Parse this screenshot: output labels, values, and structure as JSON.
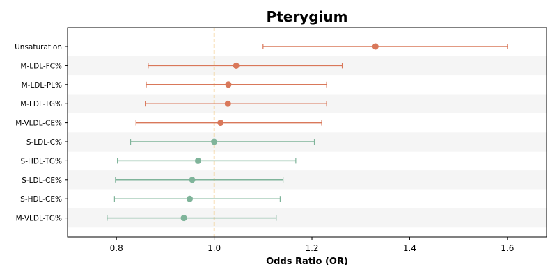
{
  "chart_data": {
    "type": "forest",
    "title": "Pterygium",
    "xlabel": "Odds Ratio (OR)",
    "ylabel": "",
    "xlim": [
      0.7,
      1.68
    ],
    "xticks": [
      0.8,
      1.0,
      1.2,
      1.4,
      1.6
    ],
    "xtick_labels": [
      "0.8",
      "1.0",
      "1.2",
      "1.4",
      "1.6"
    ],
    "reference_line": 1.0,
    "colors": {
      "positive": "#d9785a",
      "negative": "#7fb49a",
      "reference": "#f0c070",
      "band": "#f5f5f5"
    },
    "rows": [
      {
        "label": "Unsaturation",
        "or": 1.33,
        "lower": 1.1,
        "upper": 1.6,
        "group": "positive"
      },
      {
        "label": "M-LDL-FC%",
        "or": 1.045,
        "lower": 0.865,
        "upper": 1.262,
        "group": "positive"
      },
      {
        "label": "M-LDL-PL%",
        "or": 1.029,
        "lower": 0.861,
        "upper": 1.23,
        "group": "positive"
      },
      {
        "label": "M-LDL-TG%",
        "or": 1.028,
        "lower": 0.859,
        "upper": 1.23,
        "group": "positive"
      },
      {
        "label": "M-VLDL-CE%",
        "or": 1.013,
        "lower": 0.84,
        "upper": 1.22,
        "group": "positive"
      },
      {
        "label": "S-LDL-C%",
        "or": 1.0,
        "lower": 0.829,
        "upper": 1.205,
        "group": "negative"
      },
      {
        "label": "S-HDL-TG%",
        "or": 0.967,
        "lower": 0.802,
        "upper": 1.167,
        "group": "negative"
      },
      {
        "label": "S-LDL-CE%",
        "or": 0.955,
        "lower": 0.798,
        "upper": 1.141,
        "group": "negative"
      },
      {
        "label": "S-HDL-CE%",
        "or": 0.95,
        "lower": 0.796,
        "upper": 1.135,
        "group": "negative"
      },
      {
        "label": "M-VLDL-TG%",
        "or": 0.938,
        "lower": 0.781,
        "upper": 1.127,
        "group": "negative"
      }
    ],
    "grid": false,
    "legend": "none"
  }
}
